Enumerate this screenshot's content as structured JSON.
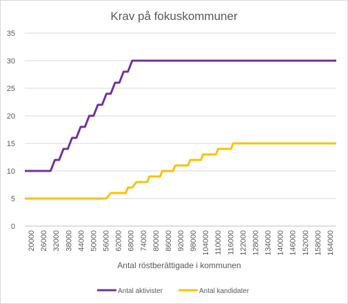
{
  "chart_data": {
    "type": "line",
    "title": "Krav på fokuskommuner",
    "xlabel": "Antal röstberättigade i kommunen",
    "ylabel": "",
    "ylim": [
      0,
      35
    ],
    "yticks": [
      0,
      5,
      10,
      15,
      20,
      25,
      30,
      35
    ],
    "x_start": 20000,
    "x_end": 165000,
    "x_tick_labels": [
      "20000",
      "26000",
      "32000",
      "38000",
      "44000",
      "50000",
      "56000",
      "62000",
      "68000",
      "74000",
      "80000",
      "86000",
      "92000",
      "98000",
      "104000",
      "110000",
      "116000",
      "122000",
      "128000",
      "134000",
      "140000",
      "146000",
      "152000",
      "158000",
      "164000"
    ],
    "grid": true,
    "legend_position": "bottom",
    "series": [
      {
        "name": "Antal aktivister",
        "color": "#7030a0",
        "points": [
          [
            20000,
            10
          ],
          [
            32000,
            10
          ],
          [
            34000,
            12
          ],
          [
            36000,
            12
          ],
          [
            38000,
            14
          ],
          [
            40000,
            14
          ],
          [
            42000,
            16
          ],
          [
            44000,
            16
          ],
          [
            46000,
            18
          ],
          [
            48000,
            18
          ],
          [
            50000,
            20
          ],
          [
            52000,
            20
          ],
          [
            54000,
            22
          ],
          [
            56000,
            22
          ],
          [
            58000,
            24
          ],
          [
            60000,
            24
          ],
          [
            62000,
            26
          ],
          [
            64000,
            26
          ],
          [
            66000,
            28
          ],
          [
            68000,
            28
          ],
          [
            70000,
            30
          ],
          [
            165000,
            30
          ]
        ]
      },
      {
        "name": "Antal kandidater",
        "color": "#ffc000",
        "points": [
          [
            20000,
            5
          ],
          [
            58000,
            5
          ],
          [
            60000,
            6
          ],
          [
            67000,
            6
          ],
          [
            68000,
            7
          ],
          [
            70000,
            7
          ],
          [
            72000,
            8
          ],
          [
            77000,
            8
          ],
          [
            78000,
            9
          ],
          [
            83000,
            9
          ],
          [
            84000,
            10
          ],
          [
            89000,
            10
          ],
          [
            90000,
            11
          ],
          [
            96000,
            11
          ],
          [
            97000,
            12
          ],
          [
            102000,
            12
          ],
          [
            103000,
            13
          ],
          [
            109000,
            13
          ],
          [
            110000,
            14
          ],
          [
            116000,
            14
          ],
          [
            117000,
            15
          ],
          [
            165000,
            15
          ]
        ]
      }
    ]
  }
}
